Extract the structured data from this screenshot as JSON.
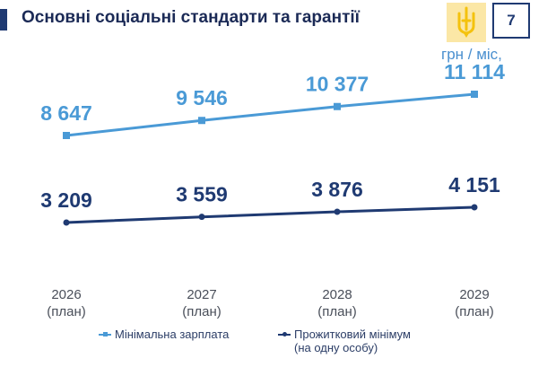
{
  "header": {
    "title": "Основні соціальні стандарти та гарантії",
    "page_number": "7",
    "emblem_icon": "trident-emblem-icon"
  },
  "unit": "грн / міс,",
  "chart_data": {
    "type": "line",
    "categories": [
      [
        "2026",
        "(план)"
      ],
      [
        "2027",
        "(план)"
      ],
      [
        "2028",
        "(план)"
      ],
      [
        "2029",
        "(план)"
      ]
    ],
    "series": [
      {
        "name": "Мінімальна зарплата",
        "values": [
          8647,
          9546,
          10377,
          11114
        ],
        "labels": [
          "8 647",
          "9 546",
          "10 377",
          "11 114"
        ],
        "color": "#4a9ad6",
        "marker": "square"
      },
      {
        "name": "Прожитковий мінімум (на одну особу)",
        "values": [
          3209,
          3559,
          3876,
          4151
        ],
        "labels": [
          "3 209",
          "3 559",
          "3 876",
          "4 151"
        ],
        "color": "#1f3a72",
        "marker": "circle"
      }
    ],
    "ylabel": "грн / міс,",
    "grid": false,
    "legend_position": "bottom"
  },
  "legend": [
    {
      "label": "Мінімальна зарплата",
      "color": "#4a9ad6",
      "marker": "square"
    },
    {
      "label_line1": "Прожитковий мінімум",
      "label_line2": "(на одну особу)",
      "color": "#1f3a72",
      "marker": "circle"
    }
  ]
}
